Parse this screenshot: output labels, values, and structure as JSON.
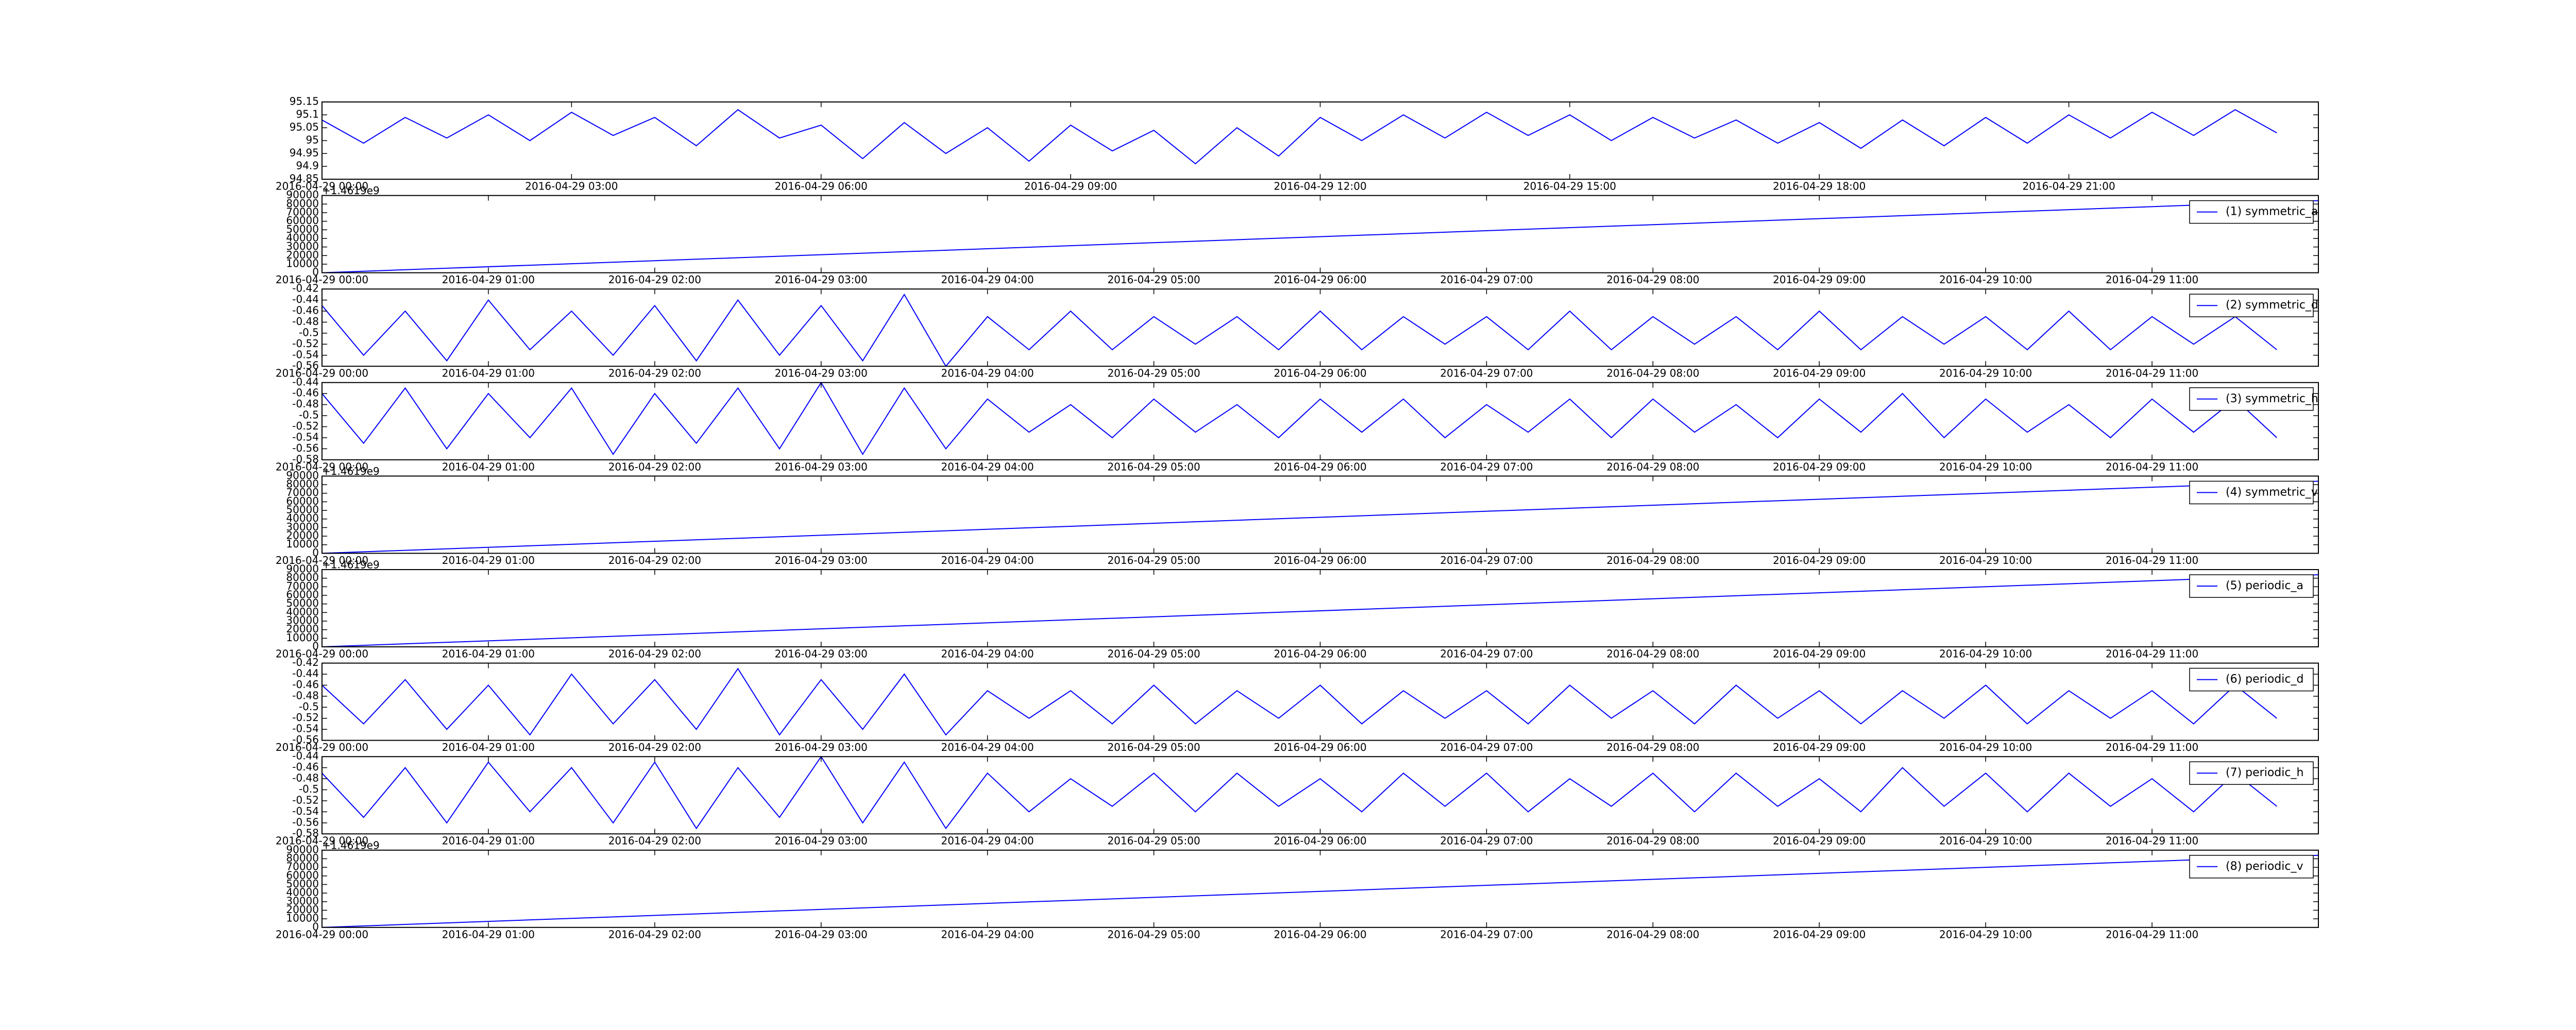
{
  "chart_data": [
    {
      "type": "line",
      "x": [
        "2016-04-29 00:00",
        "2016-04-29 00:30",
        "2016-04-29 01:00",
        "2016-04-29 01:30",
        "2016-04-29 02:00",
        "2016-04-29 02:30",
        "2016-04-29 03:00",
        "2016-04-29 03:30",
        "2016-04-29 04:00",
        "2016-04-29 04:30",
        "2016-04-29 05:00",
        "2016-04-29 05:30",
        "2016-04-29 06:00",
        "2016-04-29 06:30",
        "2016-04-29 07:00",
        "2016-04-29 07:30",
        "2016-04-29 08:00",
        "2016-04-29 08:30",
        "2016-04-29 09:00",
        "2016-04-29 09:30",
        "2016-04-29 10:00",
        "2016-04-29 10:30",
        "2016-04-29 11:00",
        "2016-04-29 11:30",
        "2016-04-29 12:00",
        "2016-04-29 12:30",
        "2016-04-29 13:00",
        "2016-04-29 13:30",
        "2016-04-29 14:00",
        "2016-04-29 14:30",
        "2016-04-29 15:00",
        "2016-04-29 15:30",
        "2016-04-29 16:00",
        "2016-04-29 16:30",
        "2016-04-29 17:00",
        "2016-04-29 17:30",
        "2016-04-29 18:00",
        "2016-04-29 18:30",
        "2016-04-29 19:00",
        "2016-04-29 19:30",
        "2016-04-29 20:00",
        "2016-04-29 20:30",
        "2016-04-29 21:00",
        "2016-04-29 21:30",
        "2016-04-29 22:00",
        "2016-04-29 22:30",
        "2016-04-29 23:00",
        "2016-04-29 23:30"
      ],
      "series": [
        {
          "color": "#0000ff",
          "values": [
            95.08,
            94.99,
            95.09,
            95.01,
            95.1,
            95.0,
            95.11,
            95.02,
            95.09,
            94.98,
            95.12,
            95.01,
            95.06,
            94.93,
            95.07,
            94.95,
            95.05,
            94.92,
            95.06,
            94.96,
            95.04,
            94.91,
            95.05,
            94.94,
            95.09,
            95.0,
            95.1,
            95.01,
            95.11,
            95.02,
            95.1,
            95.0,
            95.09,
            95.01,
            95.08,
            94.99,
            95.07,
            94.97,
            95.08,
            94.98,
            95.09,
            94.99,
            95.1,
            95.01,
            95.11,
            95.02,
            95.12,
            95.03
          ]
        }
      ],
      "xlim": [
        "2016-04-29 00:00",
        "2016-04-30 00:00"
      ],
      "xticks": [
        "2016-04-29 00:00",
        "2016-04-29 03:00",
        "2016-04-29 06:00",
        "2016-04-29 09:00",
        "2016-04-29 12:00",
        "2016-04-29 15:00",
        "2016-04-29 18:00",
        "2016-04-29 21:00"
      ],
      "ylim": [
        94.85,
        95.15
      ],
      "yticks": [
        94.85,
        94.9,
        94.95,
        95.0,
        95.05,
        95.1,
        95.15
      ]
    },
    {
      "type": "line",
      "offset_text": "+1.4619e9",
      "legend": "upper right",
      "x": [
        "2016-04-29 00:00",
        "2016-04-29 12:00"
      ],
      "series": [
        {
          "name": "(1) symmetric_a",
          "color": "#0000ff",
          "values": [
            0,
            84000
          ]
        }
      ],
      "xlim": [
        "2016-04-29 00:00",
        "2016-04-29 12:00"
      ],
      "xticks": [
        "2016-04-29 00:00",
        "2016-04-29 01:00",
        "2016-04-29 02:00",
        "2016-04-29 03:00",
        "2016-04-29 04:00",
        "2016-04-29 05:00",
        "2016-04-29 06:00",
        "2016-04-29 07:00",
        "2016-04-29 08:00",
        "2016-04-29 09:00",
        "2016-04-29 10:00",
        "2016-04-29 11:00"
      ],
      "ylim": [
        0,
        90000
      ],
      "yticks": [
        0,
        10000,
        20000,
        30000,
        40000,
        50000,
        60000,
        70000,
        80000,
        90000
      ]
    },
    {
      "type": "line",
      "legend": "upper right",
      "x": [
        "2016-04-29 00:00",
        "2016-04-29 00:15",
        "2016-04-29 00:30",
        "2016-04-29 00:45",
        "2016-04-29 01:00",
        "2016-04-29 01:15",
        "2016-04-29 01:30",
        "2016-04-29 01:45",
        "2016-04-29 02:00",
        "2016-04-29 02:15",
        "2016-04-29 02:30",
        "2016-04-29 02:45",
        "2016-04-29 03:00",
        "2016-04-29 03:15",
        "2016-04-29 03:30",
        "2016-04-29 03:45",
        "2016-04-29 04:00",
        "2016-04-29 04:15",
        "2016-04-29 04:30",
        "2016-04-29 04:45",
        "2016-04-29 05:00",
        "2016-04-29 05:15",
        "2016-04-29 05:30",
        "2016-04-29 05:45",
        "2016-04-29 06:00",
        "2016-04-29 06:15",
        "2016-04-29 06:30",
        "2016-04-29 06:45",
        "2016-04-29 07:00",
        "2016-04-29 07:15",
        "2016-04-29 07:30",
        "2016-04-29 07:45",
        "2016-04-29 08:00",
        "2016-04-29 08:15",
        "2016-04-29 08:30",
        "2016-04-29 08:45",
        "2016-04-29 09:00",
        "2016-04-29 09:15",
        "2016-04-29 09:30",
        "2016-04-29 09:45",
        "2016-04-29 10:00",
        "2016-04-29 10:15",
        "2016-04-29 10:30",
        "2016-04-29 10:45",
        "2016-04-29 11:00",
        "2016-04-29 11:15",
        "2016-04-29 11:30",
        "2016-04-29 11:45"
      ],
      "series": [
        {
          "name": "(2) symmetric_d",
          "color": "#0000ff",
          "values": [
            -0.45,
            -0.54,
            -0.46,
            -0.55,
            -0.44,
            -0.53,
            -0.46,
            -0.54,
            -0.45,
            -0.55,
            -0.44,
            -0.54,
            -0.45,
            -0.55,
            -0.43,
            -0.56,
            -0.47,
            -0.53,
            -0.46,
            -0.53,
            -0.47,
            -0.52,
            -0.47,
            -0.53,
            -0.46,
            -0.53,
            -0.47,
            -0.52,
            -0.47,
            -0.53,
            -0.46,
            -0.53,
            -0.47,
            -0.52,
            -0.47,
            -0.53,
            -0.46,
            -0.53,
            -0.47,
            -0.52,
            -0.47,
            -0.53,
            -0.46,
            -0.53,
            -0.47,
            -0.52,
            -0.47,
            -0.53
          ]
        }
      ],
      "xlim": [
        "2016-04-29 00:00",
        "2016-04-29 12:00"
      ],
      "xticks": [
        "2016-04-29 00:00",
        "2016-04-29 01:00",
        "2016-04-29 02:00",
        "2016-04-29 03:00",
        "2016-04-29 04:00",
        "2016-04-29 05:00",
        "2016-04-29 06:00",
        "2016-04-29 07:00",
        "2016-04-29 08:00",
        "2016-04-29 09:00",
        "2016-04-29 10:00",
        "2016-04-29 11:00"
      ],
      "ylim": [
        -0.56,
        -0.42
      ],
      "yticks": [
        -0.56,
        -0.54,
        -0.52,
        -0.5,
        -0.48,
        -0.46,
        -0.44,
        -0.42
      ]
    },
    {
      "type": "line",
      "legend": "upper right",
      "x": [
        "2016-04-29 00:00",
        "2016-04-29 00:15",
        "2016-04-29 00:30",
        "2016-04-29 00:45",
        "2016-04-29 01:00",
        "2016-04-29 01:15",
        "2016-04-29 01:30",
        "2016-04-29 01:45",
        "2016-04-29 02:00",
        "2016-04-29 02:15",
        "2016-04-29 02:30",
        "2016-04-29 02:45",
        "2016-04-29 03:00",
        "2016-04-29 03:15",
        "2016-04-29 03:30",
        "2016-04-29 03:45",
        "2016-04-29 04:00",
        "2016-04-29 04:15",
        "2016-04-29 04:30",
        "2016-04-29 04:45",
        "2016-04-29 05:00",
        "2016-04-29 05:15",
        "2016-04-29 05:30",
        "2016-04-29 05:45",
        "2016-04-29 06:00",
        "2016-04-29 06:15",
        "2016-04-29 06:30",
        "2016-04-29 06:45",
        "2016-04-29 07:00",
        "2016-04-29 07:15",
        "2016-04-29 07:30",
        "2016-04-29 07:45",
        "2016-04-29 08:00",
        "2016-04-29 08:15",
        "2016-04-29 08:30",
        "2016-04-29 08:45",
        "2016-04-29 09:00",
        "2016-04-29 09:15",
        "2016-04-29 09:30",
        "2016-04-29 09:45",
        "2016-04-29 10:00",
        "2016-04-29 10:15",
        "2016-04-29 10:30",
        "2016-04-29 10:45",
        "2016-04-29 11:00",
        "2016-04-29 11:15",
        "2016-04-29 11:30",
        "2016-04-29 11:45"
      ],
      "series": [
        {
          "name": "(3) symmetric_h",
          "color": "#0000ff",
          "values": [
            -0.46,
            -0.55,
            -0.45,
            -0.56,
            -0.46,
            -0.54,
            -0.45,
            -0.57,
            -0.46,
            -0.55,
            -0.45,
            -0.56,
            -0.44,
            -0.57,
            -0.45,
            -0.56,
            -0.47,
            -0.53,
            -0.48,
            -0.54,
            -0.47,
            -0.53,
            -0.48,
            -0.54,
            -0.47,
            -0.53,
            -0.47,
            -0.54,
            -0.48,
            -0.53,
            -0.47,
            -0.54,
            -0.47,
            -0.53,
            -0.48,
            -0.54,
            -0.47,
            -0.53,
            -0.46,
            -0.54,
            -0.47,
            -0.53,
            -0.48,
            -0.54,
            -0.47,
            -0.53,
            -0.47,
            -0.54
          ]
        }
      ],
      "xlim": [
        "2016-04-29 00:00",
        "2016-04-29 12:00"
      ],
      "xticks": [
        "2016-04-29 00:00",
        "2016-04-29 01:00",
        "2016-04-29 02:00",
        "2016-04-29 03:00",
        "2016-04-29 04:00",
        "2016-04-29 05:00",
        "2016-04-29 06:00",
        "2016-04-29 07:00",
        "2016-04-29 08:00",
        "2016-04-29 09:00",
        "2016-04-29 10:00",
        "2016-04-29 11:00"
      ],
      "ylim": [
        -0.58,
        -0.44
      ],
      "yticks": [
        -0.58,
        -0.56,
        -0.54,
        -0.52,
        -0.5,
        -0.48,
        -0.46,
        -0.44
      ]
    },
    {
      "type": "line",
      "offset_text": "+1.4619e9",
      "legend": "upper right",
      "x": [
        "2016-04-29 00:00",
        "2016-04-29 12:00"
      ],
      "series": [
        {
          "name": "(4) symmetric_v",
          "color": "#0000ff",
          "values": [
            0,
            84000
          ]
        }
      ],
      "xlim": [
        "2016-04-29 00:00",
        "2016-04-29 12:00"
      ],
      "xticks": [
        "2016-04-29 00:00",
        "2016-04-29 01:00",
        "2016-04-29 02:00",
        "2016-04-29 03:00",
        "2016-04-29 04:00",
        "2016-04-29 05:00",
        "2016-04-29 06:00",
        "2016-04-29 07:00",
        "2016-04-29 08:00",
        "2016-04-29 09:00",
        "2016-04-29 10:00",
        "2016-04-29 11:00"
      ],
      "ylim": [
        0,
        90000
      ],
      "yticks": [
        0,
        10000,
        20000,
        30000,
        40000,
        50000,
        60000,
        70000,
        80000,
        90000
      ]
    },
    {
      "type": "line",
      "offset_text": "+1.4619e9",
      "legend": "upper right",
      "x": [
        "2016-04-29 00:00",
        "2016-04-29 12:00"
      ],
      "series": [
        {
          "name": "(5) periodic_a",
          "color": "#0000ff",
          "values": [
            0,
            84000
          ]
        }
      ],
      "xlim": [
        "2016-04-29 00:00",
        "2016-04-29 12:00"
      ],
      "xticks": [
        "2016-04-29 00:00",
        "2016-04-29 01:00",
        "2016-04-29 02:00",
        "2016-04-29 03:00",
        "2016-04-29 04:00",
        "2016-04-29 05:00",
        "2016-04-29 06:00",
        "2016-04-29 07:00",
        "2016-04-29 08:00",
        "2016-04-29 09:00",
        "2016-04-29 10:00",
        "2016-04-29 11:00"
      ],
      "ylim": [
        0,
        90000
      ],
      "yticks": [
        0,
        10000,
        20000,
        30000,
        40000,
        50000,
        60000,
        70000,
        80000,
        90000
      ]
    },
    {
      "type": "line",
      "legend": "upper right",
      "x": [
        "2016-04-29 00:00",
        "2016-04-29 00:15",
        "2016-04-29 00:30",
        "2016-04-29 00:45",
        "2016-04-29 01:00",
        "2016-04-29 01:15",
        "2016-04-29 01:30",
        "2016-04-29 01:45",
        "2016-04-29 02:00",
        "2016-04-29 02:15",
        "2016-04-29 02:30",
        "2016-04-29 02:45",
        "2016-04-29 03:00",
        "2016-04-29 03:15",
        "2016-04-29 03:30",
        "2016-04-29 03:45",
        "2016-04-29 04:00",
        "2016-04-29 04:15",
        "2016-04-29 04:30",
        "2016-04-29 04:45",
        "2016-04-29 05:00",
        "2016-04-29 05:15",
        "2016-04-29 05:30",
        "2016-04-29 05:45",
        "2016-04-29 06:00",
        "2016-04-29 06:15",
        "2016-04-29 06:30",
        "2016-04-29 06:45",
        "2016-04-29 07:00",
        "2016-04-29 07:15",
        "2016-04-29 07:30",
        "2016-04-29 07:45",
        "2016-04-29 08:00",
        "2016-04-29 08:15",
        "2016-04-29 08:30",
        "2016-04-29 08:45",
        "2016-04-29 09:00",
        "2016-04-29 09:15",
        "2016-04-29 09:30",
        "2016-04-29 09:45",
        "2016-04-29 10:00",
        "2016-04-29 10:15",
        "2016-04-29 10:30",
        "2016-04-29 10:45",
        "2016-04-29 11:00",
        "2016-04-29 11:15",
        "2016-04-29 11:30",
        "2016-04-29 11:45"
      ],
      "series": [
        {
          "name": "(6) periodic_d",
          "color": "#0000ff",
          "values": [
            -0.46,
            -0.53,
            -0.45,
            -0.54,
            -0.46,
            -0.55,
            -0.44,
            -0.53,
            -0.45,
            -0.54,
            -0.43,
            -0.55,
            -0.45,
            -0.54,
            -0.44,
            -0.55,
            -0.47,
            -0.52,
            -0.47,
            -0.53,
            -0.46,
            -0.53,
            -0.47,
            -0.52,
            -0.46,
            -0.53,
            -0.47,
            -0.52,
            -0.47,
            -0.53,
            -0.46,
            -0.52,
            -0.47,
            -0.53,
            -0.46,
            -0.52,
            -0.47,
            -0.53,
            -0.47,
            -0.52,
            -0.46,
            -0.53,
            -0.47,
            -0.52,
            -0.47,
            -0.53,
            -0.46,
            -0.52
          ]
        }
      ],
      "xlim": [
        "2016-04-29 00:00",
        "2016-04-29 12:00"
      ],
      "xticks": [
        "2016-04-29 00:00",
        "2016-04-29 01:00",
        "2016-04-29 02:00",
        "2016-04-29 03:00",
        "2016-04-29 04:00",
        "2016-04-29 05:00",
        "2016-04-29 06:00",
        "2016-04-29 07:00",
        "2016-04-29 08:00",
        "2016-04-29 09:00",
        "2016-04-29 10:00",
        "2016-04-29 11:00"
      ],
      "ylim": [
        -0.56,
        -0.42
      ],
      "yticks": [
        -0.56,
        -0.54,
        -0.52,
        -0.5,
        -0.48,
        -0.46,
        -0.44,
        -0.42
      ]
    },
    {
      "type": "line",
      "legend": "upper right",
      "x": [
        "2016-04-29 00:00",
        "2016-04-29 00:15",
        "2016-04-29 00:30",
        "2016-04-29 00:45",
        "2016-04-29 01:00",
        "2016-04-29 01:15",
        "2016-04-29 01:30",
        "2016-04-29 01:45",
        "2016-04-29 02:00",
        "2016-04-29 02:15",
        "2016-04-29 02:30",
        "2016-04-29 02:45",
        "2016-04-29 03:00",
        "2016-04-29 03:15",
        "2016-04-29 03:30",
        "2016-04-29 03:45",
        "2016-04-29 04:00",
        "2016-04-29 04:15",
        "2016-04-29 04:30",
        "2016-04-29 04:45",
        "2016-04-29 05:00",
        "2016-04-29 05:15",
        "2016-04-29 05:30",
        "2016-04-29 05:45",
        "2016-04-29 06:00",
        "2016-04-29 06:15",
        "2016-04-29 06:30",
        "2016-04-29 06:45",
        "2016-04-29 07:00",
        "2016-04-29 07:15",
        "2016-04-29 07:30",
        "2016-04-29 07:45",
        "2016-04-29 08:00",
        "2016-04-29 08:15",
        "2016-04-29 08:30",
        "2016-04-29 08:45",
        "2016-04-29 09:00",
        "2016-04-29 09:15",
        "2016-04-29 09:30",
        "2016-04-29 09:45",
        "2016-04-29 10:00",
        "2016-04-29 10:15",
        "2016-04-29 10:30",
        "2016-04-29 10:45",
        "2016-04-29 11:00",
        "2016-04-29 11:15",
        "2016-04-29 11:30",
        "2016-04-29 11:45"
      ],
      "series": [
        {
          "name": "(7) periodic_h",
          "color": "#0000ff",
          "values": [
            -0.47,
            -0.55,
            -0.46,
            -0.56,
            -0.45,
            -0.54,
            -0.46,
            -0.56,
            -0.45,
            -0.57,
            -0.46,
            -0.55,
            -0.44,
            -0.56,
            -0.45,
            -0.57,
            -0.47,
            -0.54,
            -0.48,
            -0.53,
            -0.47,
            -0.54,
            -0.47,
            -0.53,
            -0.48,
            -0.54,
            -0.47,
            -0.53,
            -0.47,
            -0.54,
            -0.48,
            -0.53,
            -0.47,
            -0.54,
            -0.47,
            -0.53,
            -0.48,
            -0.54,
            -0.46,
            -0.53,
            -0.47,
            -0.54,
            -0.47,
            -0.53,
            -0.48,
            -0.54,
            -0.47,
            -0.53
          ]
        }
      ],
      "xlim": [
        "2016-04-29 00:00",
        "2016-04-29 12:00"
      ],
      "xticks": [
        "2016-04-29 00:00",
        "2016-04-29 01:00",
        "2016-04-29 02:00",
        "2016-04-29 03:00",
        "2016-04-29 04:00",
        "2016-04-29 05:00",
        "2016-04-29 06:00",
        "2016-04-29 07:00",
        "2016-04-29 08:00",
        "2016-04-29 09:00",
        "2016-04-29 10:00",
        "2016-04-29 11:00"
      ],
      "ylim": [
        -0.58,
        -0.44
      ],
      "yticks": [
        -0.58,
        -0.56,
        -0.54,
        -0.52,
        -0.5,
        -0.48,
        -0.46,
        -0.44
      ]
    },
    {
      "type": "line",
      "offset_text": "+1.4619e9",
      "legend": "upper right",
      "x": [
        "2016-04-29 00:00",
        "2016-04-29 12:00"
      ],
      "series": [
        {
          "name": "(8) periodic_v",
          "color": "#0000ff",
          "values": [
            0,
            84000
          ]
        }
      ],
      "xlim": [
        "2016-04-29 00:00",
        "2016-04-29 12:00"
      ],
      "xticks": [
        "2016-04-29 00:00",
        "2016-04-29 01:00",
        "2016-04-29 02:00",
        "2016-04-29 03:00",
        "2016-04-29 04:00",
        "2016-04-29 05:00",
        "2016-04-29 06:00",
        "2016-04-29 07:00",
        "2016-04-29 08:00",
        "2016-04-29 09:00",
        "2016-04-29 10:00",
        "2016-04-29 11:00"
      ],
      "ylim": [
        0,
        90000
      ],
      "yticks": [
        0,
        10000,
        20000,
        30000,
        40000,
        50000,
        60000,
        70000,
        80000,
        90000
      ]
    }
  ]
}
